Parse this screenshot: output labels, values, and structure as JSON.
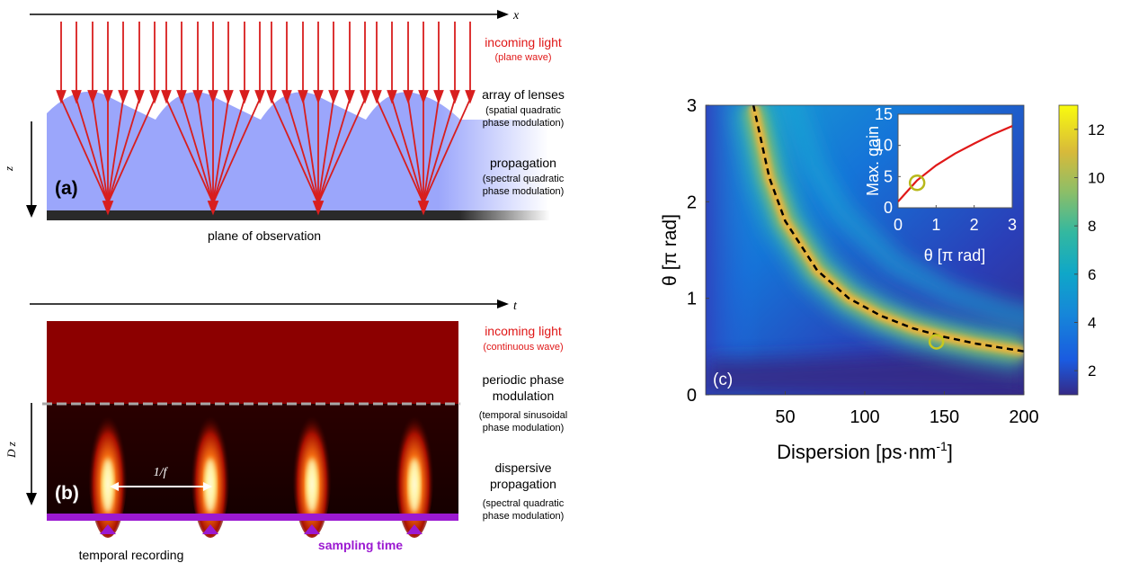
{
  "panel_a": {
    "axis_x": "x",
    "axis_z": "z",
    "label": "(a)",
    "incoming_title": "incoming light",
    "incoming_sub": "(plane wave)",
    "lenses_title": "array of lenses",
    "lenses_sub1": "(spatial quadratic",
    "lenses_sub2": "phase modulation)",
    "prop_title": "propagation",
    "prop_sub1": "(spectral quadratic",
    "prop_sub2": "phase modulation)",
    "plane_label": "plane of observation",
    "colors": {
      "arrow": "#d81e1e",
      "lens": "#9ba6fb",
      "plane": "#2a2a2a"
    }
  },
  "panel_b": {
    "axis_t": "t",
    "axis_dz": "D  z",
    "label": "(b)",
    "incoming_title": "incoming light",
    "incoming_sub": "(continuous wave)",
    "mod_title1": "periodic phase",
    "mod_title2": "modulation",
    "mod_sub1": "(temporal sinusoidal",
    "mod_sub2": "phase modulation)",
    "disp_title1": "dispersive",
    "disp_title2": "propagation",
    "disp_sub1": "(spectral quadratic",
    "disp_sub2": "phase modulation)",
    "period_label": "1/f",
    "recording_label": "temporal recording",
    "sampling_label": "sampling time",
    "colors": {
      "cw": "#8c0000",
      "dark": "#1e0000",
      "sampling": "#9b19d1"
    }
  },
  "panel_c": {
    "label": "(c)",
    "xlabel": "Dispersion [ps·nm",
    "xlabel_sup": "-1",
    "xlabel_end": "]",
    "ylabel": "θ [π rad]",
    "xticks": [
      "50",
      "100",
      "150",
      "200"
    ],
    "yticks": [
      "0",
      "1",
      "2",
      "3"
    ],
    "colorbar_ticks": [
      "2",
      "4",
      "6",
      "8",
      "10",
      "12"
    ],
    "inset": {
      "ylabel": "Max. gain",
      "xlabel": "θ [π rad]",
      "xticks": [
        "0",
        "1",
        "2",
        "3"
      ],
      "yticks": [
        "0",
        "5",
        "10",
        "15"
      ]
    }
  },
  "chart_data": {
    "type": "heatmap",
    "xlabel": "Dispersion [ps·nm-1]",
    "ylabel": "θ [π rad]",
    "xlim": [
      0,
      200
    ],
    "ylim": [
      0,
      3
    ],
    "colorbar_range": [
      1,
      13
    ],
    "ridge_curve": {
      "x": [
        30,
        40,
        50,
        70,
        90,
        110,
        130,
        150,
        170,
        200
      ],
      "y": [
        3.0,
        2.25,
        1.8,
        1.29,
        1.0,
        0.82,
        0.69,
        0.6,
        0.53,
        0.45
      ]
    },
    "marker": {
      "x": 145,
      "y": 0.55
    },
    "inset": {
      "type": "line",
      "xlim": [
        0,
        3
      ],
      "ylim": [
        0,
        15
      ],
      "x": [
        0,
        0.5,
        1,
        1.5,
        2,
        2.5,
        3
      ],
      "y": [
        1,
        4.4,
        6.8,
        8.7,
        10.3,
        11.8,
        13.1
      ],
      "marker": {
        "x": 0.5,
        "y": 4.0
      }
    }
  }
}
